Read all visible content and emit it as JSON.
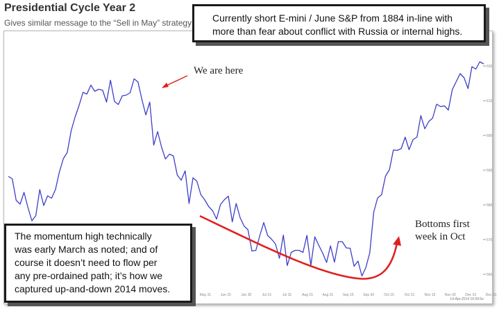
{
  "header": {
    "title": "Presidential Cycle Year 2",
    "subtitle": "Gives similar message to the “Sell in May” strategy"
  },
  "callouts": {
    "top": "Currently short E-mini / June S&P from 1884 in-line with more than fear about conflict with Russia or internal highs.",
    "bottom_lines": [
      "The momentum high technically",
      "was early March as noted; and of",
      "course it doesn’t need to flow per",
      "any pre-ordained path; it’s how we",
      "captured up-and-down 2014 moves."
    ]
  },
  "annotations": {
    "we_are_here": "We are here",
    "bottoms_line1": "Bottoms first",
    "bottoms_line2": "week in Oct"
  },
  "colors": {
    "series": "#3d3dc8",
    "arrow": "#e02020",
    "callout_border": "#1a1a1a"
  },
  "chart_data": {
    "type": "line",
    "title": "Presidential Cycle Year 2",
    "subtitle": "Gives similar message to the “Sell in May” strategy",
    "xlabel": "",
    "ylabel": "",
    "ylim": [
      555,
      625
    ],
    "yticks": [
      "560",
      "570",
      "580",
      "590",
      "600",
      "610",
      "620"
    ],
    "xticks": [
      "May 31",
      "Jun 15",
      "Jun 30",
      "Jul 15",
      "Jul 31",
      "Aug 15",
      "Aug 31",
      "Sep 15",
      "Sep 30",
      "Oct 15",
      "Oct 31",
      "Nov 15",
      "Nov 30",
      "Dec 15",
      "Dec 31"
    ],
    "grid": false,
    "footnote": "14-Apr-2014 16:59:5e",
    "series": [
      {
        "values": [
          588.2,
          587.5,
          581.3,
          580.2,
          583.6,
          579.2,
          575.4,
          576.9,
          584.4,
          579.8,
          582.6,
          581.9,
          584.4,
          589.5,
          593.3,
          595.1,
          601.4,
          605.3,
          608.6,
          612.4,
          611.9,
          614.5,
          612.7,
          613.3,
          613.0,
          609.6,
          615.9,
          609.8,
          608.9,
          611.4,
          611.6,
          612.3,
          616.3,
          615.4,
          610.3,
          605.9,
          609.6,
          597.2,
          601.1,
          596.6,
          593.2,
          594.6,
          594.1,
          588.6,
          587.1,
          589.8,
          580.4,
          587.8,
          586.8,
          582.9,
          581.4,
          579.5,
          578.3,
          575.9,
          580.1,
          581.5,
          582.5,
          575.1,
          580.4,
          576.3,
          573.9,
          572.8,
          566.7,
          566.9,
          571.1,
          574.9,
          571.2,
          570.1,
          568.7,
          564.6,
          571.3,
          562.5,
          566.3,
          566.9,
          566.9,
          566.3,
          571.2,
          562.5,
          570.8,
          568.4,
          566.1,
          563.4,
          568.2,
          563.5,
          569.4,
          569.4,
          567.6,
          567.5,
          562.3,
          563.8,
          559.5,
          562.0,
          566.2,
          577.9,
          582.0,
          582.9,
          588.3,
          590.1,
          595.8,
          595.7,
          596.2,
          599.5,
          595.9,
          598.8,
          599.5,
          605.7,
          601.9,
          604.0,
          605.0,
          609.0,
          608.3,
          608.5,
          607.3,
          613.2,
          615.5,
          617.8,
          616.6,
          613.5,
          619.8,
          619.1,
          621.2,
          620.6
        ]
      }
    ]
  }
}
